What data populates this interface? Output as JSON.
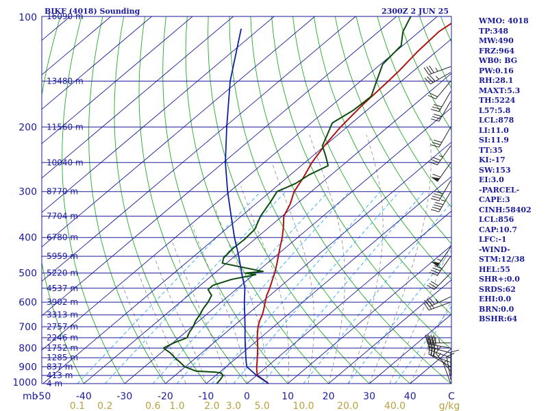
{
  "title_left": "BIKF (4018) Sounding",
  "title_right": "2300Z  2 JUN 25",
  "colors": {
    "frame": "#1a1a9a",
    "isobar": "#1a1a9a",
    "isotherm": "#1a1a9a",
    "dry_adiabat": "#22aa22",
    "moist_adiabat": "#888888",
    "mixing_ratio": "#22aaff",
    "temperature": "#b01010",
    "dewpoint": "#0a4a0a",
    "parcel": "#0a20a0",
    "wind": "#222222",
    "mixing_label": "#b8a040"
  },
  "stats": [
    "WMO: 4018",
    "TP:348",
    "MW:490",
    "FRZ:964",
    "WB0: BG",
    "PW:0.16",
    "RH:28.1",
    "MAXT:5.3",
    "TH:5224",
    "L57:5.8",
    "LCL:878",
    "LI:11.0",
    "SI:11.9",
    "TT:35",
    "KI:-17",
    "SW:153",
    "EI:3.0",
    "-PARCEL-",
    "CAPE:3",
    "CINH:58402",
    "LCL:856",
    "CAP:10.7",
    "LFC:-1",
    "-WIND-",
    "STM:12/38",
    "HEL:55",
    "SHR+:0.0",
    "SRDS:62",
    "EHI:0.0",
    "BRN:0.0",
    "BSHR:64"
  ],
  "chart_data": {
    "type": "skew-t log-p sounding",
    "pressure_axis_label": "mb",
    "pressure_range_mb": [
      1000,
      100
    ],
    "temperature_range_c_at_1000mb": [
      -50,
      50
    ],
    "pressure_ticks": [
      "100",
      "200",
      "300",
      "400",
      "500",
      "600",
      "700",
      "800",
      "900",
      "1000"
    ],
    "pressure_tick_values": [
      100,
      200,
      300,
      400,
      500,
      600,
      700,
      800,
      900,
      1000
    ],
    "temperature_ticks": [
      "-50",
      "-40",
      "-30",
      "-20",
      "-10",
      "0",
      "10",
      "20",
      "30",
      "40",
      "C"
    ],
    "temperature_tick_values": [
      -50,
      -40,
      -30,
      -20,
      -10,
      0,
      10,
      20,
      30,
      40
    ],
    "mixing_ratio_ticks": [
      "0.1",
      "0.2",
      "0.6",
      "1.0",
      "2.0",
      "3.0",
      "5.0",
      "10.0",
      "20.0",
      "40.0",
      "g/kg"
    ],
    "mixing_ratio_values": [
      0.1,
      0.2,
      0.6,
      1.0,
      2.0,
      3.0,
      5.0,
      10.0,
      20.0,
      40.0
    ],
    "height_levels": [
      {
        "p": 100,
        "label": "16090 m"
      },
      {
        "p": 150,
        "label": "13480 m"
      },
      {
        "p": 200,
        "label": "11560 m"
      },
      {
        "p": 250,
        "label": "10040 m"
      },
      {
        "p": 300,
        "label": "8770 m"
      },
      {
        "p": 350,
        "label": "7704 m"
      },
      {
        "p": 400,
        "label": "6780 m"
      },
      {
        "p": 450,
        "label": "5959 m"
      },
      {
        "p": 500,
        "label": "5220 m"
      },
      {
        "p": 550,
        "label": "4537 m"
      },
      {
        "p": 600,
        "label": "3902 m"
      },
      {
        "p": 650,
        "label": "3313 m"
      },
      {
        "p": 700,
        "label": "2757 m"
      },
      {
        "p": 750,
        "label": "2246 m"
      },
      {
        "p": 800,
        "label": "1752 m"
      },
      {
        "p": 850,
        "label": "1285 m"
      },
      {
        "p": 900,
        "label": "837 m"
      },
      {
        "p": 950,
        "label": "413 m"
      },
      {
        "p": 1000,
        "label": "4 m"
      }
    ],
    "series": [
      {
        "name": "temperature",
        "points": [
          [
            1000,
            5.3
          ],
          [
            975,
            2.8
          ],
          [
            950,
            0.2
          ],
          [
            925,
            -1.2
          ],
          [
            900,
            -2.5
          ],
          [
            875,
            -3.7
          ],
          [
            850,
            -5.0
          ],
          [
            825,
            -6.3
          ],
          [
            800,
            -7.7
          ],
          [
            775,
            -9.2
          ],
          [
            750,
            -10.8
          ],
          [
            725,
            -12.3
          ],
          [
            700,
            -13.8
          ],
          [
            675,
            -15.1
          ],
          [
            650,
            -16.2
          ],
          [
            625,
            -17.6
          ],
          [
            600,
            -19.2
          ],
          [
            575,
            -20.8
          ],
          [
            550,
            -22.1
          ],
          [
            525,
            -23.7
          ],
          [
            500,
            -25.3
          ],
          [
            475,
            -27.2
          ],
          [
            450,
            -29.3
          ],
          [
            425,
            -31.5
          ],
          [
            400,
            -33.8
          ],
          [
            375,
            -36.5
          ],
          [
            350,
            -39.6
          ],
          [
            325,
            -41.5
          ],
          [
            300,
            -44.2
          ],
          [
            275,
            -46.0
          ],
          [
            250,
            -48.3
          ],
          [
            225,
            -50.1
          ],
          [
            200,
            -51.6
          ],
          [
            175,
            -52.6
          ],
          [
            150,
            -53.2
          ],
          [
            140,
            -53.6
          ],
          [
            125,
            -54.6
          ],
          [
            110,
            -55.2
          ],
          [
            100,
            -54.0
          ]
        ]
      },
      {
        "name": "dewpoint",
        "points": [
          [
            1000,
            -7.4
          ],
          [
            975,
            -7.7
          ],
          [
            950,
            -8.2
          ],
          [
            935,
            -9.5
          ],
          [
            930,
            -11.4
          ],
          [
            925,
            -16.0
          ],
          [
            900,
            -20.1
          ],
          [
            875,
            -22.6
          ],
          [
            850,
            -25.2
          ],
          [
            825,
            -27.7
          ],
          [
            800,
            -30.8
          ],
          [
            775,
            -29.8
          ],
          [
            750,
            -28.0
          ],
          [
            725,
            -29.0
          ],
          [
            700,
            -29.7
          ],
          [
            675,
            -30.8
          ],
          [
            650,
            -31.5
          ],
          [
            625,
            -32.5
          ],
          [
            600,
            -33.2
          ],
          [
            575,
            -34.3
          ],
          [
            555,
            -36.8
          ],
          [
            540,
            -36.9
          ],
          [
            520,
            -34.0
          ],
          [
            505,
            -29.5
          ],
          [
            500,
            -32.5
          ],
          [
            495,
            -28.6
          ],
          [
            470,
            -41.0
          ],
          [
            455,
            -42.2
          ],
          [
            430,
            -42.7
          ],
          [
            405,
            -42.5
          ],
          [
            380,
            -42.9
          ],
          [
            350,
            -45.3
          ],
          [
            320,
            -47.0
          ],
          [
            300,
            -48.4
          ],
          [
            285,
            -46.2
          ],
          [
            270,
            -45.4
          ],
          [
            255,
            -43.4
          ],
          [
            240,
            -46.8
          ],
          [
            225,
            -50.6
          ],
          [
            210,
            -52.6
          ],
          [
            195,
            -54.8
          ],
          [
            180,
            -53.3
          ],
          [
            165,
            -53.0
          ],
          [
            150,
            -56.1
          ],
          [
            135,
            -59.5
          ],
          [
            120,
            -60.4
          ],
          [
            110,
            -64.0
          ],
          [
            100,
            -66.5
          ]
        ]
      },
      {
        "name": "parcel",
        "points": [
          [
            1000,
            5.3
          ],
          [
            950,
            0.0
          ],
          [
            900,
            -4.9
          ],
          [
            876,
            -6.3
          ],
          [
            850,
            -7.8
          ],
          [
            800,
            -10.7
          ],
          [
            750,
            -13.8
          ],
          [
            700,
            -17.0
          ],
          [
            650,
            -20.5
          ],
          [
            600,
            -24.3
          ],
          [
            550,
            -28.2
          ],
          [
            500,
            -33.4
          ],
          [
            450,
            -39.0
          ],
          [
            400,
            -45.5
          ],
          [
            350,
            -52.5
          ],
          [
            300,
            -60.5
          ],
          [
            250,
            -69.5
          ],
          [
            200,
            -79.5
          ],
          [
            150,
            -92.0
          ],
          [
            120,
            -100.5
          ],
          [
            108,
            -104.5
          ]
        ]
      }
    ],
    "wind_barbs": [
      {
        "p": 1000,
        "dir": 340,
        "spd": 5
      },
      {
        "p": 975,
        "dir": 350,
        "spd": 10
      },
      {
        "p": 950,
        "dir": 0,
        "spd": 10
      },
      {
        "p": 925,
        "dir": 320,
        "spd": 15
      },
      {
        "p": 900,
        "dir": 300,
        "spd": 20
      },
      {
        "p": 875,
        "dir": 290,
        "spd": 30
      },
      {
        "p": 850,
        "dir": 290,
        "spd": 30
      },
      {
        "p": 825,
        "dir": 285,
        "spd": 35
      },
      {
        "p": 800,
        "dir": 280,
        "spd": 40
      },
      {
        "p": 775,
        "dir": 270,
        "spd": 45
      },
      {
        "p": 600,
        "dir": 250,
        "spd": 30
      },
      {
        "p": 580,
        "dir": 245,
        "spd": 35
      },
      {
        "p": 500,
        "dir": 225,
        "spd": 30
      },
      {
        "p": 450,
        "dir": 215,
        "spd": 40
      },
      {
        "p": 425,
        "dir": 215,
        "spd": 55
      },
      {
        "p": 300,
        "dir": 210,
        "spd": 45
      },
      {
        "p": 280,
        "dir": 210,
        "spd": 40
      },
      {
        "p": 250,
        "dir": 215,
        "spd": 60
      },
      {
        "p": 225,
        "dir": 215,
        "spd": 35
      },
      {
        "p": 200,
        "dir": 210,
        "spd": 30
      },
      {
        "p": 170,
        "dir": 210,
        "spd": 30
      },
      {
        "p": 160,
        "dir": 210,
        "spd": 30
      },
      {
        "p": 150,
        "dir": 220,
        "spd": 20
      },
      {
        "p": 142,
        "dir": 240,
        "spd": 35
      },
      {
        "p": 137,
        "dir": 250,
        "spd": 35
      }
    ]
  }
}
